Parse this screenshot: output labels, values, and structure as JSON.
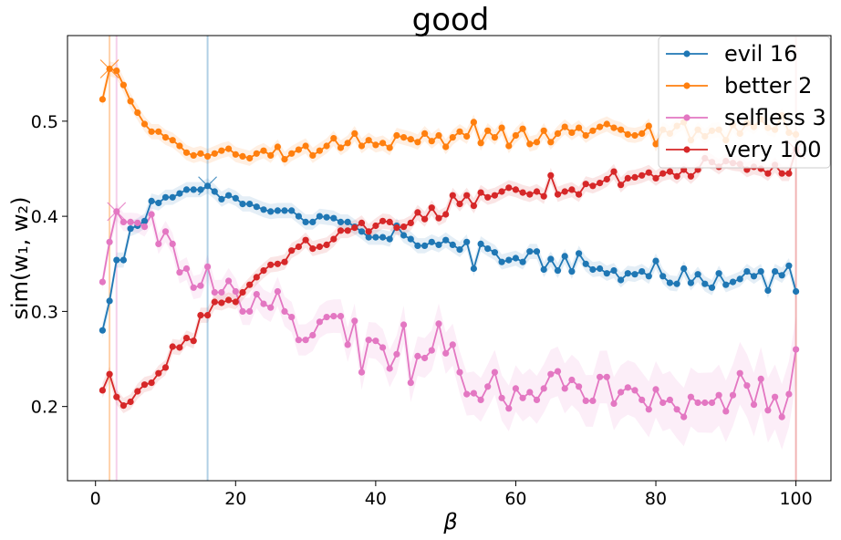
{
  "chart_data": {
    "type": "line",
    "title": "good",
    "xlabel": "β",
    "ylabel": "sim(w₁, w₂)",
    "xlim": [
      -4,
      105
    ],
    "ylim": [
      0.122,
      0.59
    ],
    "xticks": [
      0,
      20,
      40,
      60,
      80,
      100
    ],
    "yticks": [
      0.2,
      0.3,
      0.4,
      0.5
    ],
    "xtick_labels": [
      "0",
      "20",
      "40",
      "60",
      "80",
      "100"
    ],
    "ytick_labels": [
      "0.2",
      "0.3",
      "0.4",
      "0.5"
    ],
    "grid": false,
    "legend_position": "top-right",
    "series": [
      {
        "name": "evil 16",
        "color": "#1f77b4",
        "marker_x": 16,
        "values": [
          0.28,
          0.311,
          0.354,
          0.354,
          0.387,
          0.39,
          0.395,
          0.416,
          0.414,
          0.42,
          0.42,
          0.424,
          0.428,
          0.428,
          0.428,
          0.432,
          0.426,
          0.418,
          0.422,
          0.419,
          0.413,
          0.413,
          0.41,
          0.407,
          0.405,
          0.406,
          0.406,
          0.406,
          0.4,
          0.394,
          0.394,
          0.4,
          0.399,
          0.398,
          0.394,
          0.394,
          0.389,
          0.384,
          0.378,
          0.378,
          0.378,
          0.376,
          0.39,
          0.38,
          0.376,
          0.369,
          0.369,
          0.373,
          0.37,
          0.375,
          0.37,
          0.365,
          0.373,
          0.345,
          0.371,
          0.366,
          0.362,
          0.352,
          0.354,
          0.356,
          0.352,
          0.363,
          0.363,
          0.344,
          0.355,
          0.343,
          0.358,
          0.342,
          0.361,
          0.35,
          0.344,
          0.345,
          0.34,
          0.343,
          0.333,
          0.34,
          0.339,
          0.342,
          0.337,
          0.353,
          0.337,
          0.33,
          0.329,
          0.345,
          0.33,
          0.339,
          0.329,
          0.325,
          0.34,
          0.328,
          0.331,
          0.334,
          0.342,
          0.337,
          0.342,
          0.322,
          0.342,
          0.338,
          0.348,
          0.321
        ]
      },
      {
        "name": "better 2",
        "color": "#ff7f0e",
        "marker_x": 2,
        "values": [
          0.523,
          0.555,
          0.553,
          0.538,
          0.521,
          0.509,
          0.497,
          0.489,
          0.489,
          0.483,
          0.48,
          0.474,
          0.467,
          0.464,
          0.466,
          0.463,
          0.466,
          0.469,
          0.471,
          0.465,
          0.463,
          0.461,
          0.466,
          0.469,
          0.464,
          0.473,
          0.46,
          0.466,
          0.47,
          0.474,
          0.464,
          0.469,
          0.474,
          0.482,
          0.472,
          0.477,
          0.487,
          0.474,
          0.48,
          0.475,
          0.477,
          0.472,
          0.485,
          0.483,
          0.481,
          0.478,
          0.487,
          0.479,
          0.485,
          0.473,
          0.483,
          0.489,
          0.484,
          0.499,
          0.477,
          0.49,
          0.483,
          0.493,
          0.474,
          0.485,
          0.492,
          0.476,
          0.478,
          0.49,
          0.478,
          0.487,
          0.494,
          0.488,
          0.493,
          0.485,
          0.49,
          0.494,
          0.497,
          0.493,
          0.491,
          0.486,
          0.485,
          0.487,
          0.495,
          0.476,
          0.491,
          0.487,
          0.495,
          0.499,
          0.48,
          0.491,
          0.484,
          0.49,
          0.491,
          0.48,
          0.496,
          0.487,
          0.498,
          0.494,
          0.502,
          0.493,
          0.491,
          0.506,
          0.488,
          0.486
        ]
      },
      {
        "name": "selfless 3",
        "color": "#e377c2",
        "marker_x": 3,
        "values": [
          0.331,
          0.373,
          0.405,
          0.394,
          0.394,
          0.393,
          0.389,
          0.402,
          0.371,
          0.384,
          0.371,
          0.341,
          0.345,
          0.325,
          0.327,
          0.347,
          0.32,
          0.32,
          0.332,
          0.321,
          0.3,
          0.3,
          0.318,
          0.308,
          0.304,
          0.321,
          0.3,
          0.294,
          0.27,
          0.27,
          0.275,
          0.289,
          0.294,
          0.295,
          0.295,
          0.265,
          0.29,
          0.236,
          0.27,
          0.269,
          0.262,
          0.24,
          0.255,
          0.286,
          0.225,
          0.253,
          0.251,
          0.259,
          0.287,
          0.256,
          0.265,
          0.236,
          0.213,
          0.214,
          0.207,
          0.221,
          0.236,
          0.209,
          0.198,
          0.219,
          0.209,
          0.215,
          0.207,
          0.219,
          0.234,
          0.237,
          0.219,
          0.228,
          0.221,
          0.206,
          0.206,
          0.231,
          0.231,
          0.203,
          0.215,
          0.22,
          0.217,
          0.207,
          0.197,
          0.218,
          0.204,
          0.207,
          0.197,
          0.189,
          0.21,
          0.204,
          0.204,
          0.204,
          0.212,
          0.195,
          0.212,
          0.235,
          0.222,
          0.202,
          0.229,
          0.196,
          0.21,
          0.189,
          0.213,
          0.26
        ]
      },
      {
        "name": "very 100",
        "color": "#d62728",
        "marker_x": 100,
        "values": [
          0.217,
          0.234,
          0.21,
          0.201,
          0.205,
          0.216,
          0.223,
          0.225,
          0.235,
          0.241,
          0.263,
          0.262,
          0.272,
          0.269,
          0.296,
          0.296,
          0.31,
          0.309,
          0.312,
          0.31,
          0.32,
          0.328,
          0.336,
          0.343,
          0.349,
          0.35,
          0.352,
          0.364,
          0.368,
          0.375,
          0.366,
          0.368,
          0.37,
          0.376,
          0.385,
          0.385,
          0.388,
          0.393,
          0.384,
          0.39,
          0.395,
          0.394,
          0.388,
          0.389,
          0.393,
          0.404,
          0.397,
          0.409,
          0.398,
          0.402,
          0.422,
          0.413,
          0.422,
          0.411,
          0.425,
          0.42,
          0.422,
          0.426,
          0.43,
          0.428,
          0.425,
          0.423,
          0.426,
          0.421,
          0.443,
          0.423,
          0.426,
          0.428,
          0.423,
          0.434,
          0.432,
          0.435,
          0.439,
          0.447,
          0.433,
          0.44,
          0.441,
          0.443,
          0.446,
          0.44,
          0.445,
          0.447,
          0.442,
          0.449,
          0.442,
          0.449,
          0.461,
          0.457,
          0.452,
          0.458,
          0.456,
          0.455,
          0.449,
          0.452,
          0.45,
          0.445,
          0.454,
          0.445,
          0.445,
          0.47
        ]
      }
    ]
  }
}
